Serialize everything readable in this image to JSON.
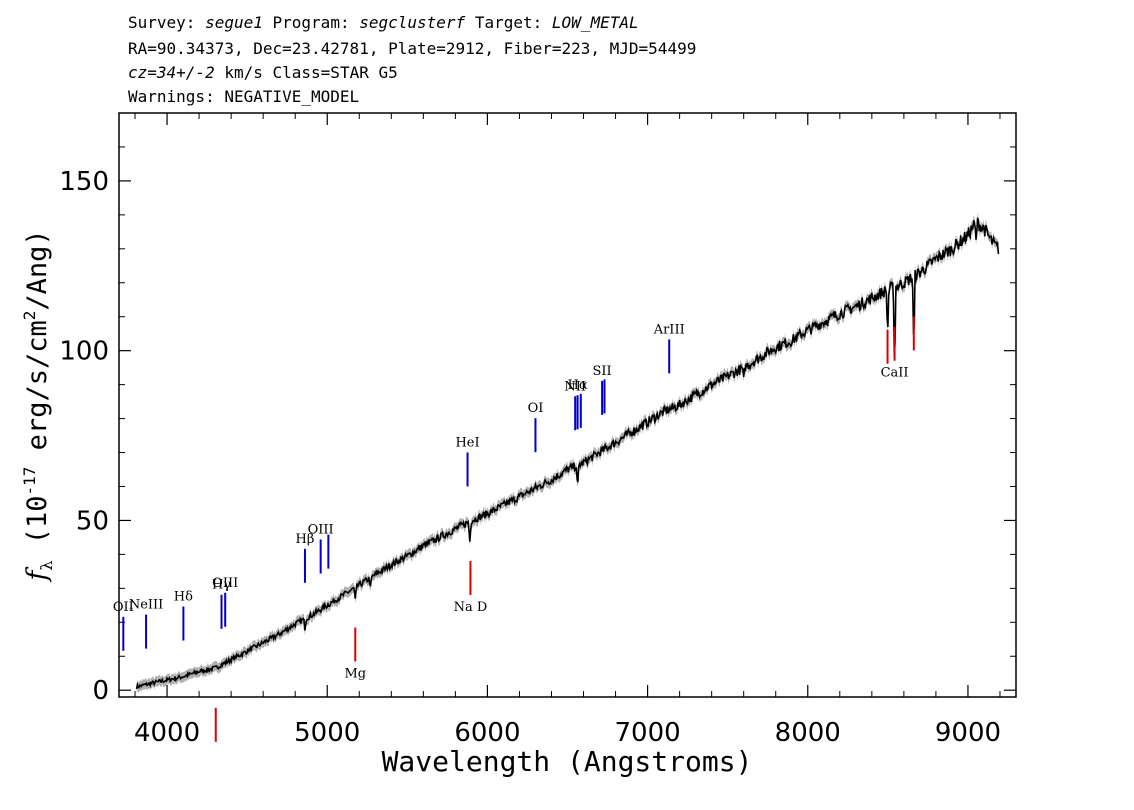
{
  "header": {
    "line1": {
      "survey_label": "Survey:",
      "survey": "segue1",
      "program_label": "Program:",
      "program": "segclusterf",
      "target_label": "Target:",
      "target": "LOW_METAL"
    },
    "line2": "RA=90.34373, Dec=23.42781, Plate=2912, Fiber=223, MJD=54499",
    "line3": {
      "cz": "cz=34+/-2",
      "rest": "km/s Class=STAR G5"
    },
    "line4": "Warnings: NEGATIVE_MODEL"
  },
  "chart_data": {
    "type": "line",
    "xlabel": "Wavelength (Angstroms)",
    "ylabel": "f_λ (10^-17 erg/s/cm^2/Ang)",
    "xlim": [
      3700,
      9300
    ],
    "ylim": [
      -2,
      170
    ],
    "x_ticks": [
      4000,
      5000,
      6000,
      7000,
      8000,
      9000
    ],
    "y_ticks": [
      0,
      50,
      100,
      150
    ],
    "series": [
      {
        "color": "#000000",
        "x": [
          3810,
          3900,
          4000,
          4100,
          4200,
          4300,
          4400,
          4500,
          4600,
          4700,
          4800,
          4900,
          5000,
          5100,
          5200,
          5300,
          5400,
          5500,
          5600,
          5700,
          5800,
          5900,
          6000,
          6100,
          6200,
          6300,
          6400,
          6500,
          6600,
          6700,
          6800,
          6900,
          7000,
          7100,
          7200,
          7300,
          7400,
          7500,
          7600,
          7700,
          7800,
          7900,
          8000,
          8100,
          8200,
          8300,
          8400,
          8500,
          8600,
          8700,
          8800,
          8900,
          9000,
          9050,
          9100,
          9150,
          9190
        ],
        "y": [
          1,
          2,
          3,
          4,
          5.5,
          6.5,
          9,
          11.5,
          14,
          16.5,
          19.5,
          22,
          25,
          28,
          31,
          34,
          37,
          39.5,
          42.5,
          45,
          47.5,
          50,
          52,
          54.5,
          57,
          59.5,
          62,
          65,
          67,
          70,
          73,
          76,
          79,
          82,
          84,
          87,
          90,
          92.5,
          95,
          98,
          101,
          103,
          106,
          108.5,
          111,
          113,
          115.5,
          118,
          120,
          123,
          127,
          130,
          134,
          138,
          136,
          132,
          130
        ]
      }
    ],
    "emission_lines": [
      {
        "label": "OII",
        "wavelength": 3727
      },
      {
        "label": "NeIII",
        "wavelength": 3869
      },
      {
        "label": "Hδ",
        "wavelength": 4102
      },
      {
        "label": "Hγ",
        "wavelength": 4340
      },
      {
        "label": "OIII",
        "wavelength": 4363
      },
      {
        "label": "Hβ",
        "wavelength": 4861
      },
      {
        "label": "OIII",
        "wavelength": 4959
      },
      {
        "label": "OIII",
        "wavelength": 5007
      },
      {
        "label": "HeI",
        "wavelength": 5876
      },
      {
        "label": "OI",
        "wavelength": 6300
      },
      {
        "label": "NII",
        "wavelength": 6548
      },
      {
        "label": "Hα",
        "wavelength": 6563
      },
      {
        "label": "NII",
        "wavelength": 6583
      },
      {
        "label": "SII",
        "wavelength": 6716
      },
      {
        "label": "SII",
        "wavelength": 6731
      },
      {
        "label": "ArIII",
        "wavelength": 7135
      }
    ],
    "absorption_lines": [
      {
        "label": "",
        "wavelength": 4304
      },
      {
        "label": "Mg",
        "wavelength": 5175
      },
      {
        "label": "Na D",
        "wavelength": 5894
      },
      {
        "label": "CaII",
        "wavelength": 8498
      },
      {
        "label": "CaII",
        "wavelength": 8542
      },
      {
        "label": "",
        "wavelength": 8662
      }
    ],
    "colors": {
      "spectrum": "#000000",
      "error_band": "#b0b0b0",
      "emission": "#0000cc",
      "absorption": "#dd0000"
    }
  }
}
